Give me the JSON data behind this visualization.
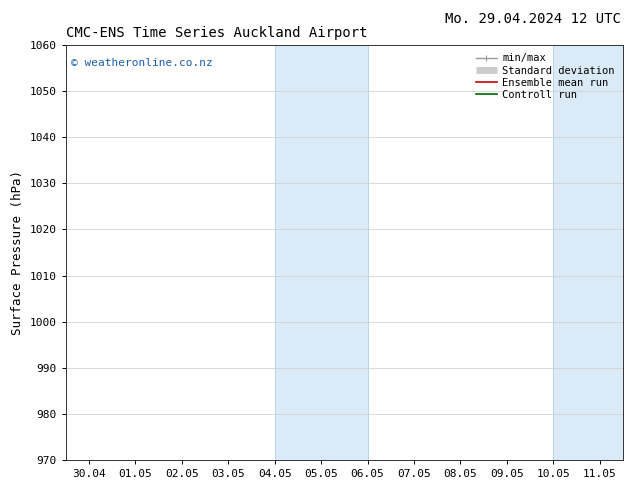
{
  "title_left": "CMC-ENS Time Series Auckland Airport",
  "title_right": "Mo. 29.04.2024 12 UTC",
  "ylabel": "Surface Pressure (hPa)",
  "ylim": [
    970,
    1060
  ],
  "yticks": [
    970,
    980,
    990,
    1000,
    1010,
    1020,
    1030,
    1040,
    1050,
    1060
  ],
  "xtick_labels": [
    "30.04",
    "01.05",
    "02.05",
    "03.05",
    "04.05",
    "05.05",
    "06.05",
    "07.05",
    "08.05",
    "09.05",
    "10.05",
    "11.05"
  ],
  "xtick_positions": [
    0,
    1,
    2,
    3,
    4,
    5,
    6,
    7,
    8,
    9,
    10,
    11
  ],
  "xlim": [
    -0.5,
    11.5
  ],
  "shaded_regions": [
    {
      "x_start": 4.0,
      "x_end": 6.0
    },
    {
      "x_start": 10.0,
      "x_end": 11.5
    }
  ],
  "shaded_color": "#daeaf7",
  "shaded_edge_color": "#b0cfe8",
  "watermark": "© weatheronline.co.nz",
  "watermark_color": "#1a5fb4",
  "legend_entries": [
    {
      "label": "min/max",
      "color": "#999999",
      "lw": 1.0
    },
    {
      "label": "Standard deviation",
      "color": "#cccccc",
      "lw": 5
    },
    {
      "label": "Ensemble mean run",
      "color": "#cc0000",
      "lw": 1.2
    },
    {
      "label": "Controll run",
      "color": "#006600",
      "lw": 1.2
    }
  ],
  "background_color": "#ffffff",
  "grid_color": "#cccccc",
  "title_fontsize": 10,
  "axis_label_fontsize": 9,
  "tick_fontsize": 8,
  "watermark_fontsize": 8,
  "legend_fontsize": 7.5
}
